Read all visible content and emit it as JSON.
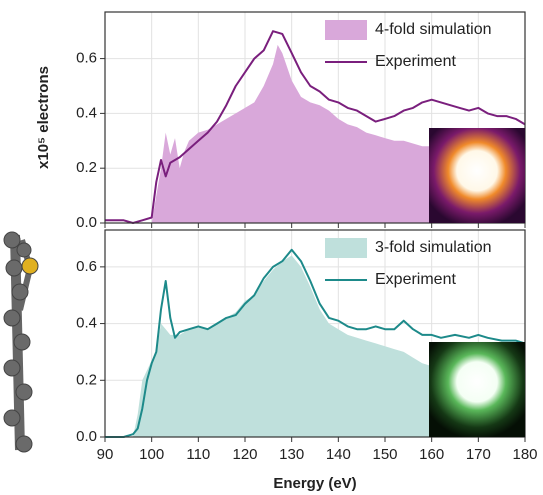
{
  "chart_data": [
    {
      "type": "line",
      "ylabel": "x10⁵ electrons",
      "xlim": [
        90,
        180
      ],
      "xticks": [
        90,
        100,
        110,
        120,
        130,
        140,
        150,
        160,
        170,
        180
      ],
      "ylim": [
        0,
        0.77
      ],
      "yticks": [
        {
          "value": 0,
          "label": "0.0"
        },
        0.2,
        0.4,
        0.6
      ],
      "grid": true,
      "legend": "upper right",
      "series": [
        {
          "name": "4-fold simulation",
          "color": "#d9a8da",
          "fill": true,
          "x": [
            100,
            101,
            102,
            103,
            104,
            105,
            106,
            107,
            108,
            110,
            112,
            114,
            116,
            118,
            120,
            122,
            124,
            126,
            127,
            128,
            130,
            132,
            134,
            136,
            138,
            140,
            142,
            144,
            146,
            148,
            150,
            152,
            154,
            156,
            158,
            160
          ],
          "values": [
            0,
            0.1,
            0.2,
            0.33,
            0.25,
            0.31,
            0.2,
            0.26,
            0.3,
            0.33,
            0.34,
            0.36,
            0.38,
            0.4,
            0.42,
            0.44,
            0.5,
            0.58,
            0.65,
            0.62,
            0.52,
            0.46,
            0.44,
            0.43,
            0.41,
            0.38,
            0.36,
            0.35,
            0.33,
            0.32,
            0.31,
            0.3,
            0.3,
            0.29,
            0.28,
            0.28
          ]
        },
        {
          "name": "Experiment",
          "color": "#7a1f7d",
          "fill": false,
          "x": [
            90,
            92,
            94,
            96,
            98,
            100,
            101,
            102,
            103,
            104,
            106,
            108,
            110,
            112,
            114,
            116,
            118,
            120,
            122,
            124,
            126,
            128,
            130,
            132,
            134,
            136,
            138,
            140,
            142,
            144,
            146,
            148,
            150,
            152,
            154,
            156,
            158,
            160,
            162,
            164,
            166,
            168,
            170,
            172,
            174,
            176,
            178,
            180
          ],
          "values": [
            0.01,
            0.01,
            0.01,
            0,
            0.01,
            0.02,
            0.15,
            0.23,
            0.17,
            0.22,
            0.24,
            0.27,
            0.3,
            0.33,
            0.37,
            0.43,
            0.5,
            0.55,
            0.6,
            0.63,
            0.7,
            0.69,
            0.62,
            0.55,
            0.5,
            0.48,
            0.45,
            0.44,
            0.42,
            0.41,
            0.39,
            0.37,
            0.38,
            0.39,
            0.41,
            0.42,
            0.44,
            0.45,
            0.44,
            0.43,
            0.42,
            0.41,
            0.42,
            0.4,
            0.39,
            0.39,
            0.38,
            0.36
          ]
        }
      ]
    },
    {
      "type": "line",
      "xlabel": "Energy (eV)",
      "xlim": [
        90,
        180
      ],
      "xticks": [
        90,
        100,
        110,
        120,
        130,
        140,
        150,
        160,
        170,
        180
      ],
      "ylim": [
        0,
        0.73
      ],
      "yticks": [
        {
          "value": 0,
          "label": "0.0"
        },
        0.2,
        0.4,
        0.6
      ],
      "grid": true,
      "legend": "upper right",
      "series": [
        {
          "name": "3-fold simulation",
          "color": "#bfe0dc",
          "fill": true,
          "x": [
            96,
            97,
            98,
            100,
            101,
            102,
            103,
            104,
            106,
            108,
            110,
            112,
            114,
            116,
            118,
            120,
            122,
            124,
            126,
            128,
            130,
            132,
            134,
            136,
            138,
            140,
            142,
            144,
            146,
            148,
            150,
            152,
            154,
            156,
            158,
            160
          ],
          "values": [
            0,
            0.08,
            0.2,
            0.27,
            0.3,
            0.4,
            0.38,
            0.36,
            0.36,
            0.38,
            0.39,
            0.38,
            0.4,
            0.42,
            0.44,
            0.48,
            0.5,
            0.55,
            0.59,
            0.62,
            0.64,
            0.6,
            0.53,
            0.45,
            0.4,
            0.38,
            0.36,
            0.35,
            0.34,
            0.33,
            0.32,
            0.31,
            0.3,
            0.28,
            0.26,
            0.25
          ]
        },
        {
          "name": "Experiment",
          "color": "#1d8a8a",
          "fill": false,
          "x": [
            90,
            94,
            96,
            97,
            98,
            99,
            100,
            101,
            102,
            103,
            104,
            105,
            106,
            108,
            110,
            112,
            114,
            116,
            118,
            120,
            122,
            124,
            126,
            128,
            130,
            132,
            134,
            136,
            138,
            140,
            142,
            144,
            146,
            148,
            150,
            152,
            154,
            156,
            158,
            160,
            162,
            165,
            168,
            170,
            172,
            175,
            178,
            180
          ],
          "values": [
            0,
            0,
            0.01,
            0.03,
            0.1,
            0.2,
            0.26,
            0.3,
            0.45,
            0.55,
            0.42,
            0.35,
            0.37,
            0.38,
            0.39,
            0.38,
            0.4,
            0.42,
            0.43,
            0.47,
            0.5,
            0.56,
            0.6,
            0.62,
            0.66,
            0.62,
            0.55,
            0.47,
            0.42,
            0.41,
            0.39,
            0.38,
            0.38,
            0.39,
            0.38,
            0.38,
            0.41,
            0.38,
            0.36,
            0.36,
            0.35,
            0.36,
            0.35,
            0.36,
            0.35,
            0.34,
            0.34,
            0.33
          ]
        }
      ]
    }
  ]
}
